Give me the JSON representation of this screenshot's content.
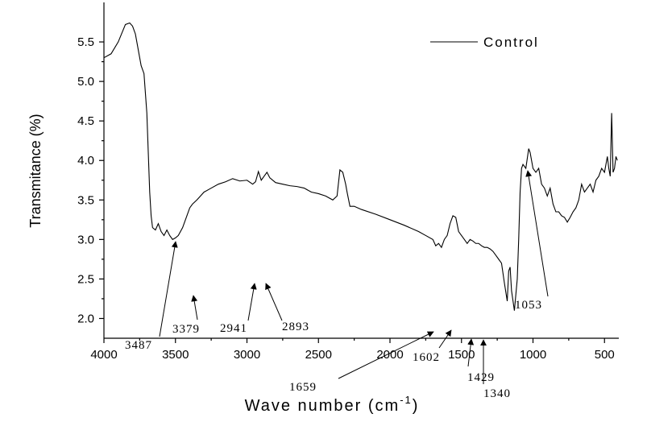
{
  "chart_data": {
    "type": "line",
    "y_label": "Transmitance (%)",
    "x_label": "Wave number (cm",
    "x_label_sup": "-1",
    "x_label_end": ")",
    "xlim": [
      4000,
      400
    ],
    "ylim": [
      1.75,
      6.0
    ],
    "xticks": [
      4000,
      3500,
      3000,
      2500,
      2000,
      1500,
      1000,
      500
    ],
    "yticks": [
      {
        "value": 2.0,
        "label": "2.0"
      },
      2.5,
      {
        "value": 3.0,
        "label": "3.0"
      },
      3.5,
      {
        "value": 4.0,
        "label": "4.0"
      },
      4.5,
      {
        "value": 5.0,
        "label": "5.0"
      },
      5.5
    ],
    "grid": false,
    "legend": "upper right",
    "series": [
      {
        "name": "Control",
        "color": "#000000",
        "x": [
          4000,
          3950,
          3900,
          3850,
          3820,
          3800,
          3780,
          3760,
          3740,
          3720,
          3700,
          3690,
          3680,
          3670,
          3660,
          3640,
          3620,
          3600,
          3580,
          3560,
          3540,
          3520,
          3500,
          3480,
          3450,
          3420,
          3400,
          3380,
          3350,
          3300,
          3250,
          3200,
          3150,
          3100,
          3050,
          3000,
          2960,
          2940,
          2920,
          2900,
          2880,
          2860,
          2840,
          2800,
          2750,
          2700,
          2650,
          2600,
          2550,
          2500,
          2450,
          2400,
          2370,
          2350,
          2330,
          2310,
          2300,
          2280,
          2250,
          2200,
          2100,
          2000,
          1900,
          1800,
          1750,
          1700,
          1680,
          1660,
          1640,
          1620,
          1600,
          1580,
          1560,
          1540,
          1520,
          1500,
          1480,
          1460,
          1440,
          1420,
          1400,
          1380,
          1360,
          1340,
          1320,
          1300,
          1280,
          1260,
          1240,
          1220,
          1200,
          1180,
          1170,
          1160,
          1150,
          1130,
          1110,
          1100,
          1090,
          1080,
          1070,
          1050,
          1030,
          1020,
          1000,
          980,
          960,
          940,
          920,
          900,
          880,
          860,
          840,
          820,
          800,
          780,
          760,
          740,
          720,
          700,
          680,
          660,
          640,
          620,
          600,
          580,
          560,
          540,
          520,
          500,
          480,
          470,
          460,
          450,
          440,
          430,
          420,
          410
        ],
        "values": [
          5.3,
          5.35,
          5.5,
          5.72,
          5.74,
          5.7,
          5.6,
          5.4,
          5.2,
          5.1,
          4.6,
          4.1,
          3.6,
          3.3,
          3.15,
          3.12,
          3.2,
          3.1,
          3.05,
          3.12,
          3.05,
          3.0,
          3.02,
          3.05,
          3.15,
          3.3,
          3.4,
          3.45,
          3.5,
          3.6,
          3.65,
          3.7,
          3.73,
          3.77,
          3.74,
          3.75,
          3.7,
          3.73,
          3.86,
          3.75,
          3.8,
          3.85,
          3.78,
          3.72,
          3.7,
          3.68,
          3.67,
          3.65,
          3.6,
          3.58,
          3.55,
          3.5,
          3.55,
          3.88,
          3.85,
          3.7,
          3.6,
          3.42,
          3.42,
          3.38,
          3.32,
          3.25,
          3.18,
          3.1,
          3.05,
          3.0,
          2.92,
          2.95,
          2.9,
          3.0,
          3.05,
          3.2,
          3.3,
          3.28,
          3.1,
          3.05,
          3.0,
          2.95,
          3.0,
          2.98,
          2.95,
          2.95,
          2.92,
          2.9,
          2.9,
          2.88,
          2.85,
          2.8,
          2.75,
          2.7,
          2.45,
          2.22,
          2.6,
          2.65,
          2.35,
          2.1,
          2.5,
          3.0,
          3.6,
          3.9,
          3.95,
          3.9,
          4.15,
          4.1,
          3.9,
          3.85,
          3.9,
          3.7,
          3.65,
          3.55,
          3.65,
          3.45,
          3.35,
          3.35,
          3.3,
          3.28,
          3.22,
          3.28,
          3.35,
          3.4,
          3.5,
          3.7,
          3.6,
          3.65,
          3.7,
          3.6,
          3.75,
          3.8,
          3.9,
          3.85,
          4.05,
          3.9,
          3.8,
          4.6,
          3.85,
          3.9,
          4.05,
          4.0
        ]
      }
    ],
    "annotations": [
      "3487",
      "3379",
      "2941",
      "2893",
      "1659",
      "1602",
      "1429",
      "1340",
      "1053"
    ]
  }
}
